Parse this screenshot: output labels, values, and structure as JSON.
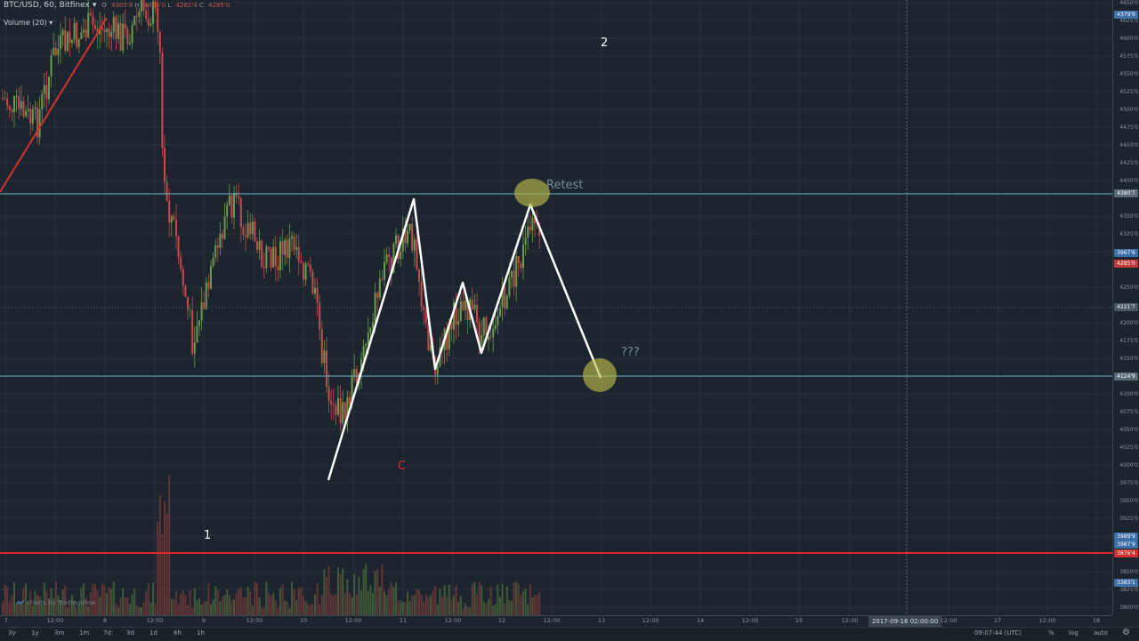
{
  "legend": {
    "symbol": "BTC/USD, 60, Bitfinex",
    "ohlc": {
      "o_label": "O",
      "o": "4305'8",
      "h_label": "H",
      "h": "4306'0",
      "l_label": "L",
      "l": "4282'4",
      "c_label": "C",
      "c": "4285'0"
    },
    "volume": "Volume (20)"
  },
  "price_ticks": [
    "4650'0",
    "4625'0",
    "4600'0",
    "4575'0",
    "4550'0",
    "4525'0",
    "4500'0",
    "4475'0",
    "4450'0",
    "4425'0",
    "4400'0",
    "4350'0",
    "4325'0",
    "4300'0",
    "4250'0",
    "4200'0",
    "4175'0",
    "4150'0",
    "4100'0",
    "4075'0",
    "4050'0",
    "4025'0",
    "4000'0",
    "3975'0",
    "3950'0",
    "3925'0",
    "3900'0",
    "3850'0",
    "3825'0",
    "3800'0"
  ],
  "price_badges": [
    {
      "label": "4379'9",
      "color": "#3d6fa8"
    },
    {
      "label": "4380'7",
      "color": "#5a6a78"
    },
    {
      "label": "3967'6",
      "color": "#3d6fa8"
    },
    {
      "label": "4285'0",
      "color": "#c23a3a"
    },
    {
      "label": "4221'7",
      "color": "#4a5764"
    },
    {
      "label": "4124'9",
      "color": "#5a6a78"
    },
    {
      "label": "3989'9",
      "color": "#3d6fa8"
    },
    {
      "label": "3987'9",
      "color": "#3d6fa8"
    },
    {
      "label": "3876'4",
      "color": "#d32f2f"
    },
    {
      "label": "3383'1",
      "color": "#3d6fa8"
    }
  ],
  "time_labels": [
    "7",
    "12:00",
    "8",
    "12:00",
    "9",
    "12:00",
    "10",
    "12:00",
    "11",
    "12:00",
    "12",
    "12:00",
    "13",
    "12:00",
    "14",
    "12:00",
    "15",
    "12:00",
    "16",
    "12:00",
    "17",
    "12:00",
    "18"
  ],
  "crosshair_time": "2017-09-16 02:00:00",
  "annotations": {
    "retest": "Retest",
    "question": "???",
    "wave_c": "C",
    "label_1": "1",
    "label_2": "2"
  },
  "watermark": "charts by TradingView",
  "toolbar": {
    "ranges": [
      "3y",
      "1y",
      "3m",
      "1m",
      "7d",
      "3d",
      "1d",
      "6h",
      "1h"
    ],
    "clock": "09:07:44 (UTC)",
    "percent": "%",
    "log": "log",
    "auto": "auto"
  },
  "colors": {
    "bg": "#1c252d",
    "up": "#6b9a4a",
    "down": "#c44b4b",
    "level": "#6fb3c9",
    "support": "#e02828",
    "ellipse": "#b8b84a"
  }
}
